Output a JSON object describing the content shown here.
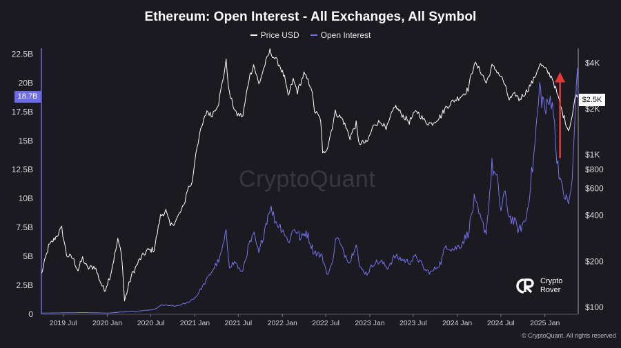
{
  "chart_data": {
    "type": "line",
    "title": "Ethereum: Open Interest - All Exchanges, All Symbol",
    "legend": {
      "placement": "top-center",
      "entries": [
        {
          "name": "Price USD",
          "color": "#ffffff"
        },
        {
          "name": "Open Interest",
          "color": "#7474f0"
        }
      ]
    },
    "x_ticks": [
      "2019 Jul",
      "2020 Jan",
      "2020 Jul",
      "2021 Jan",
      "2021 Jul",
      "2022 Jan",
      "2022 Jul",
      "2023 Jan",
      "2023 Jul",
      "2024 Jan",
      "2024 Jul",
      "2025 Jan"
    ],
    "x_range": [
      "2019-04-01",
      "2025-05-20"
    ],
    "left_axis": {
      "label": "",
      "range": [
        0,
        23000000000
      ],
      "ticks": [
        "0",
        "2.5B",
        "5B",
        "7.5B",
        "10B",
        "12.5B",
        "15B",
        "17.5B",
        "20B",
        "22.5B"
      ],
      "current_value_label": "18.7B"
    },
    "right_axis": {
      "label": "",
      "scale": "log",
      "range": [
        90,
        5000
      ],
      "ticks": [
        "$100",
        "$200",
        "$400",
        "$600",
        "$800",
        "$1K",
        "$2K",
        "$4K"
      ],
      "current_value_label": "$2.5K"
    },
    "grid": false,
    "series": [
      {
        "name": "Price USD",
        "axis": "right",
        "color": "#ffffff",
        "points": [
          [
            "2019-04-01",
            165
          ],
          [
            "2019-05-01",
            250
          ],
          [
            "2019-06-01",
            290
          ],
          [
            "2019-06-25",
            330
          ],
          [
            "2019-07-15",
            220
          ],
          [
            "2019-08-10",
            210
          ],
          [
            "2019-09-01",
            175
          ],
          [
            "2019-09-20",
            210
          ],
          [
            "2019-10-10",
            180
          ],
          [
            "2019-11-10",
            185
          ],
          [
            "2019-12-01",
            150
          ],
          [
            "2019-12-20",
            128
          ],
          [
            "2020-01-15",
            165
          ],
          [
            "2020-02-14",
            275
          ],
          [
            "2020-03-01",
            225
          ],
          [
            "2020-03-13",
            110
          ],
          [
            "2020-04-10",
            160
          ],
          [
            "2020-05-15",
            205
          ],
          [
            "2020-06-15",
            235
          ],
          [
            "2020-07-15",
            240
          ],
          [
            "2020-08-10",
            395
          ],
          [
            "2020-09-01",
            430
          ],
          [
            "2020-09-20",
            340
          ],
          [
            "2020-10-15",
            375
          ],
          [
            "2020-11-15",
            460
          ],
          [
            "2020-12-01",
            600
          ],
          [
            "2020-12-20",
            650
          ],
          [
            "2021-01-05",
            1050
          ],
          [
            "2021-01-20",
            1350
          ],
          [
            "2021-02-20",
            1950
          ],
          [
            "2021-03-10",
            1800
          ],
          [
            "2021-04-10",
            2200
          ],
          [
            "2021-05-11",
            4100
          ],
          [
            "2021-05-25",
            2500
          ],
          [
            "2021-06-22",
            1850
          ],
          [
            "2021-07-20",
            1800
          ],
          [
            "2021-08-15",
            3200
          ],
          [
            "2021-09-03",
            3900
          ],
          [
            "2021-09-25",
            2900
          ],
          [
            "2021-10-20",
            3900
          ],
          [
            "2021-11-10",
            4800
          ],
          [
            "2021-11-25",
            4400
          ],
          [
            "2021-12-20",
            3900
          ],
          [
            "2022-01-10",
            3200
          ],
          [
            "2022-01-25",
            2400
          ],
          [
            "2022-02-15",
            3100
          ],
          [
            "2022-03-05",
            2600
          ],
          [
            "2022-04-01",
            3400
          ],
          [
            "2022-05-01",
            2800
          ],
          [
            "2022-05-15",
            1950
          ],
          [
            "2022-06-10",
            1700
          ],
          [
            "2022-06-18",
            1000
          ],
          [
            "2022-07-10",
            1150
          ],
          [
            "2022-08-10",
            1900
          ],
          [
            "2022-09-10",
            1700
          ],
          [
            "2022-10-10",
            1300
          ],
          [
            "2022-11-05",
            1600
          ],
          [
            "2022-11-15",
            1200
          ],
          [
            "2022-12-20",
            1200
          ],
          [
            "2023-01-20",
            1600
          ],
          [
            "2023-02-20",
            1650
          ],
          [
            "2023-03-10",
            1450
          ],
          [
            "2023-04-15",
            2100
          ],
          [
            "2023-05-20",
            1800
          ],
          [
            "2023-06-15",
            1650
          ],
          [
            "2023-07-15",
            1950
          ],
          [
            "2023-08-20",
            1650
          ],
          [
            "2023-09-15",
            1600
          ],
          [
            "2023-10-25",
            1800
          ],
          [
            "2023-11-15",
            2050
          ],
          [
            "2023-12-15",
            2250
          ],
          [
            "2024-01-20",
            2450
          ],
          [
            "2024-02-15",
            2700
          ],
          [
            "2024-03-12",
            4000
          ],
          [
            "2024-04-10",
            3500
          ],
          [
            "2024-05-01",
            2950
          ],
          [
            "2024-05-25",
            3800
          ],
          [
            "2024-06-15",
            3550
          ],
          [
            "2024-07-10",
            3100
          ],
          [
            "2024-08-05",
            2300
          ],
          [
            "2024-09-01",
            2500
          ],
          [
            "2024-09-15",
            2300
          ],
          [
            "2024-10-15",
            2600
          ],
          [
            "2024-11-15",
            3100
          ],
          [
            "2024-12-10",
            3950
          ],
          [
            "2025-01-05",
            3600
          ],
          [
            "2025-02-01",
            3200
          ],
          [
            "2025-02-15",
            2700
          ],
          [
            "2025-03-10",
            2000
          ],
          [
            "2025-04-09",
            1450
          ],
          [
            "2025-04-25",
            1800
          ],
          [
            "2025-05-10",
            2500
          ],
          [
            "2025-05-20",
            2500
          ]
        ]
      },
      {
        "name": "Open Interest",
        "axis": "left",
        "color": "#7474f0",
        "points": [
          [
            "2019-04-01",
            100000000
          ],
          [
            "2019-10-01",
            150000000
          ],
          [
            "2020-01-01",
            100000000
          ],
          [
            "2020-03-01",
            200000000
          ],
          [
            "2020-05-01",
            250000000
          ],
          [
            "2020-07-15",
            400000000
          ],
          [
            "2020-08-15",
            800000000
          ],
          [
            "2020-10-15",
            700000000
          ],
          [
            "2020-12-01",
            1000000000
          ],
          [
            "2021-01-05",
            1500000000
          ],
          [
            "2021-02-20",
            3000000000
          ],
          [
            "2021-03-15",
            3800000000
          ],
          [
            "2021-04-15",
            4800000000
          ],
          [
            "2021-05-11",
            7000000000
          ],
          [
            "2021-05-25",
            4200000000
          ],
          [
            "2021-06-20",
            4500000000
          ],
          [
            "2021-07-15",
            3500000000
          ],
          [
            "2021-08-15",
            6000000000
          ],
          [
            "2021-09-05",
            6800000000
          ],
          [
            "2021-09-25",
            5200000000
          ],
          [
            "2021-10-20",
            7500000000
          ],
          [
            "2021-11-10",
            9300000000
          ],
          [
            "2021-12-05",
            8000000000
          ],
          [
            "2022-01-05",
            7300000000
          ],
          [
            "2022-01-25",
            6200000000
          ],
          [
            "2022-02-20",
            7500000000
          ],
          [
            "2022-03-20",
            6500000000
          ],
          [
            "2022-04-10",
            7200000000
          ],
          [
            "2022-05-10",
            5500000000
          ],
          [
            "2022-06-15",
            5000000000
          ],
          [
            "2022-07-10",
            3400000000
          ],
          [
            "2022-07-25",
            4200000000
          ],
          [
            "2022-08-15",
            6800000000
          ],
          [
            "2022-09-10",
            5500000000
          ],
          [
            "2022-10-10",
            4500000000
          ],
          [
            "2022-11-05",
            6300000000
          ],
          [
            "2022-11-20",
            4000000000
          ],
          [
            "2022-12-20",
            3500000000
          ],
          [
            "2023-01-20",
            4500000000
          ],
          [
            "2023-02-20",
            4500000000
          ],
          [
            "2023-03-15",
            4000000000
          ],
          [
            "2023-04-15",
            5000000000
          ],
          [
            "2023-05-20",
            4700000000
          ],
          [
            "2023-06-15",
            4500000000
          ],
          [
            "2023-07-15",
            5000000000
          ],
          [
            "2023-08-20",
            3800000000
          ],
          [
            "2023-09-15",
            3600000000
          ],
          [
            "2023-10-25",
            4500000000
          ],
          [
            "2023-11-15",
            6000000000
          ],
          [
            "2023-12-15",
            5600000000
          ],
          [
            "2024-01-15",
            6000000000
          ],
          [
            "2024-02-15",
            7000000000
          ],
          [
            "2024-03-12",
            9800000000
          ],
          [
            "2024-04-10",
            8000000000
          ],
          [
            "2024-05-01",
            7100000000
          ],
          [
            "2024-05-25",
            12800000000
          ],
          [
            "2024-06-15",
            11500000000
          ],
          [
            "2024-07-01",
            9000000000
          ],
          [
            "2024-07-15",
            10500000000
          ],
          [
            "2024-08-05",
            8500000000
          ],
          [
            "2024-09-01",
            7800000000
          ],
          [
            "2024-09-15",
            7200000000
          ],
          [
            "2024-10-15",
            8300000000
          ],
          [
            "2024-11-15",
            13500000000
          ],
          [
            "2024-12-10",
            19500000000
          ],
          [
            "2025-01-05",
            17500000000
          ],
          [
            "2025-02-01",
            19000000000
          ],
          [
            "2025-02-15",
            14500000000
          ],
          [
            "2025-03-10",
            11000000000
          ],
          [
            "2025-04-09",
            9500000000
          ],
          [
            "2025-04-25",
            11500000000
          ],
          [
            "2025-05-10",
            18500000000
          ],
          [
            "2025-05-15",
            21800000000
          ],
          [
            "2025-05-20",
            18700000000
          ]
        ]
      }
    ],
    "annotations": [
      {
        "type": "arrow",
        "color": "#e53935",
        "axis": "left",
        "x": "2025-03-05",
        "from": 13500000000,
        "to": 20500000000
      }
    ]
  },
  "watermark": "CryptoQuant",
  "brand": {
    "line1": "Crypto",
    "line2": "Rover"
  },
  "copyright": "© CryptoQuant. All rights reserved"
}
